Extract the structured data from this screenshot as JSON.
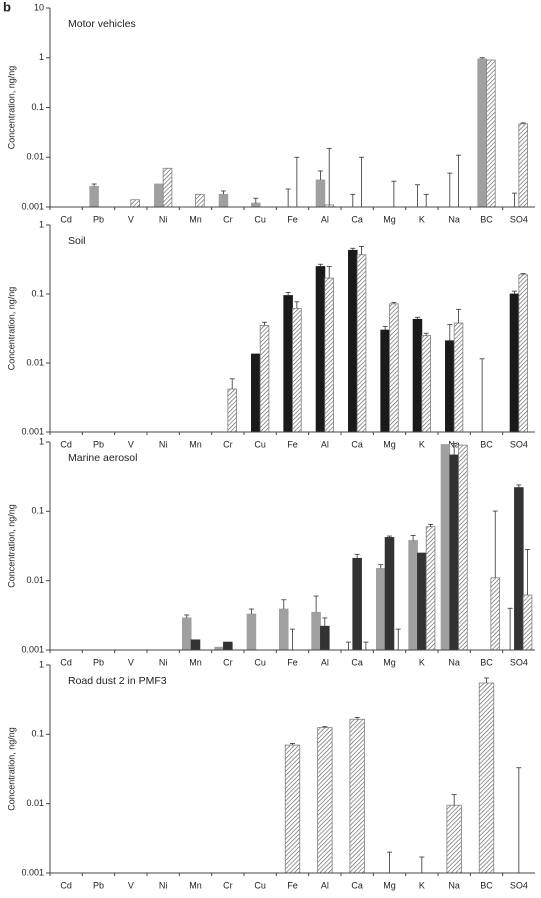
{
  "label": "b",
  "chart_data": [
    {
      "type": "bar",
      "title": "Motor vehicles",
      "ylabel": "Concentration, ng/ng",
      "log": true,
      "categories": [
        "Cd",
        "Pb",
        "V",
        "Ni",
        "Mn",
        "Cr",
        "Cu",
        "Fe",
        "Al",
        "Ca",
        "Mg",
        "K",
        "Na",
        "BC",
        "SO4"
      ],
      "ylim": [
        0.001,
        10
      ],
      "yticks": [
        0.001,
        0.01,
        0.1,
        1,
        10
      ],
      "series": [
        {
          "color": "#a0a0a0",
          "pattern": "solid",
          "values": [
            null,
            0.0026,
            null,
            0.0029,
            null,
            0.0018,
            0.0012,
            0,
            0.0035,
            0,
            null,
            0,
            0,
            0.95,
            0
          ],
          "errors": [
            null,
            0.0003,
            null,
            null,
            null,
            0.0003,
            0.0003,
            0.0023,
            0.0018,
            0.0018,
            null,
            0.0028,
            0.0048,
            0.05,
            0.0019
          ]
        },
        {
          "color": "#808080",
          "pattern": "hatch",
          "values": [
            null,
            null,
            0.0014,
            0.006,
            0.0018,
            null,
            null,
            0,
            0.0011,
            0,
            0,
            0,
            0,
            0.9,
            0.047
          ],
          "errors": [
            null,
            null,
            null,
            null,
            null,
            null,
            null,
            0.01,
            0.014,
            0.01,
            0.0033,
            0.0018,
            0.011,
            null,
            0.002
          ]
        }
      ]
    },
    {
      "type": "bar",
      "title": "Soil",
      "ylabel": "Concentration, ng/ng",
      "log": true,
      "categories": [
        "Cd",
        "Pb",
        "V",
        "Ni",
        "Mn",
        "Cr",
        "Cu",
        "Fe",
        "Al",
        "Ca",
        "Mg",
        "K",
        "Na",
        "BC",
        "SO4"
      ],
      "ylim": [
        0.001,
        1
      ],
      "yticks": [
        0.001,
        0.01,
        0.1,
        1
      ],
      "series": [
        {
          "color": "#1a1a1a",
          "pattern": "solid",
          "values": [
            null,
            null,
            null,
            null,
            null,
            null,
            0.0135,
            0.095,
            0.25,
            0.43,
            0.03,
            0.043,
            0.021,
            0,
            0.1
          ],
          "errors": [
            null,
            null,
            null,
            null,
            null,
            null,
            null,
            0.01,
            0.02,
            0.03,
            0.004,
            0.003,
            0.015,
            0.0115,
            0.01
          ]
        },
        {
          "color": "#808080",
          "pattern": "hatch",
          "values": [
            null,
            null,
            null,
            null,
            null,
            0.0042,
            0.035,
            0.062,
            0.17,
            0.37,
            0.072,
            0.025,
            0.038,
            null,
            0.19
          ],
          "errors": [
            null,
            null,
            null,
            null,
            null,
            0.0017,
            0.004,
            0.015,
            0.08,
            0.12,
            0.003,
            0.002,
            0.022,
            null,
            0.008
          ]
        }
      ]
    },
    {
      "type": "bar",
      "title": "Marine aerosol",
      "ylabel": "Concentration, ng/ng",
      "log": true,
      "categories": [
        "Cd",
        "Pb",
        "V",
        "Ni",
        "Mn",
        "Cr",
        "Cu",
        "Fe",
        "Al",
        "Ca",
        "Mg",
        "K",
        "Na",
        "BC",
        "SO4"
      ],
      "ylim": [
        0.001,
        1
      ],
      "yticks": [
        0.001,
        0.01,
        0.1,
        1
      ],
      "series": [
        {
          "color": "#a0a0a0",
          "pattern": "solid",
          "values": [
            null,
            null,
            null,
            null,
            0.0029,
            0.0011,
            0.0033,
            0.0039,
            0.0035,
            0,
            0.015,
            0.038,
            0.92,
            null,
            0
          ],
          "errors": [
            null,
            null,
            null,
            null,
            0.0003,
            null,
            0.0006,
            0.0014,
            0.0025,
            0.0013,
            0.002,
            0.007,
            null,
            null,
            0.004
          ]
        },
        {
          "color": "#333333",
          "pattern": "solid",
          "values": [
            null,
            null,
            null,
            null,
            0.0014,
            0.0013,
            null,
            0.001,
            0.0022,
            0.021,
            0.042,
            0.025,
            0.65,
            null,
            0.22
          ],
          "errors": [
            null,
            null,
            null,
            null,
            null,
            null,
            null,
            0.001,
            0.0007,
            0.003,
            0.002,
            null,
            0.3,
            null,
            0.02
          ]
        },
        {
          "color": "#808080",
          "pattern": "hatch",
          "values": [
            null,
            null,
            null,
            null,
            null,
            null,
            null,
            null,
            null,
            0,
            0,
            0.06,
            0.9,
            0.011,
            0.0062
          ],
          "errors": [
            null,
            null,
            null,
            null,
            null,
            null,
            null,
            null,
            null,
            0.0013,
            0.002,
            0.005,
            null,
            0.09,
            0.022
          ]
        }
      ]
    },
    {
      "type": "bar",
      "title": "Road dust 2 in PMF3",
      "ylabel": "Concentration, ng/ng",
      "log": true,
      "categories": [
        "Cd",
        "Pb",
        "V",
        "Ni",
        "Mn",
        "Cr",
        "Cu",
        "Fe",
        "Al",
        "Ca",
        "Mg",
        "K",
        "Na",
        "BC",
        "SO4"
      ],
      "ylim": [
        0.001,
        1
      ],
      "yticks": [
        0.001,
        0.01,
        0.1,
        1
      ],
      "series": [
        {
          "color": "#808080",
          "pattern": "hatch",
          "values": [
            null,
            null,
            null,
            null,
            null,
            null,
            null,
            0.07,
            0.125,
            0.165,
            0,
            0,
            0.0095,
            0.55,
            0
          ],
          "errors": [
            null,
            null,
            null,
            null,
            null,
            null,
            null,
            0.004,
            0.004,
            0.01,
            0.002,
            0.0017,
            0.004,
            0.1,
            0.033
          ]
        }
      ]
    }
  ]
}
